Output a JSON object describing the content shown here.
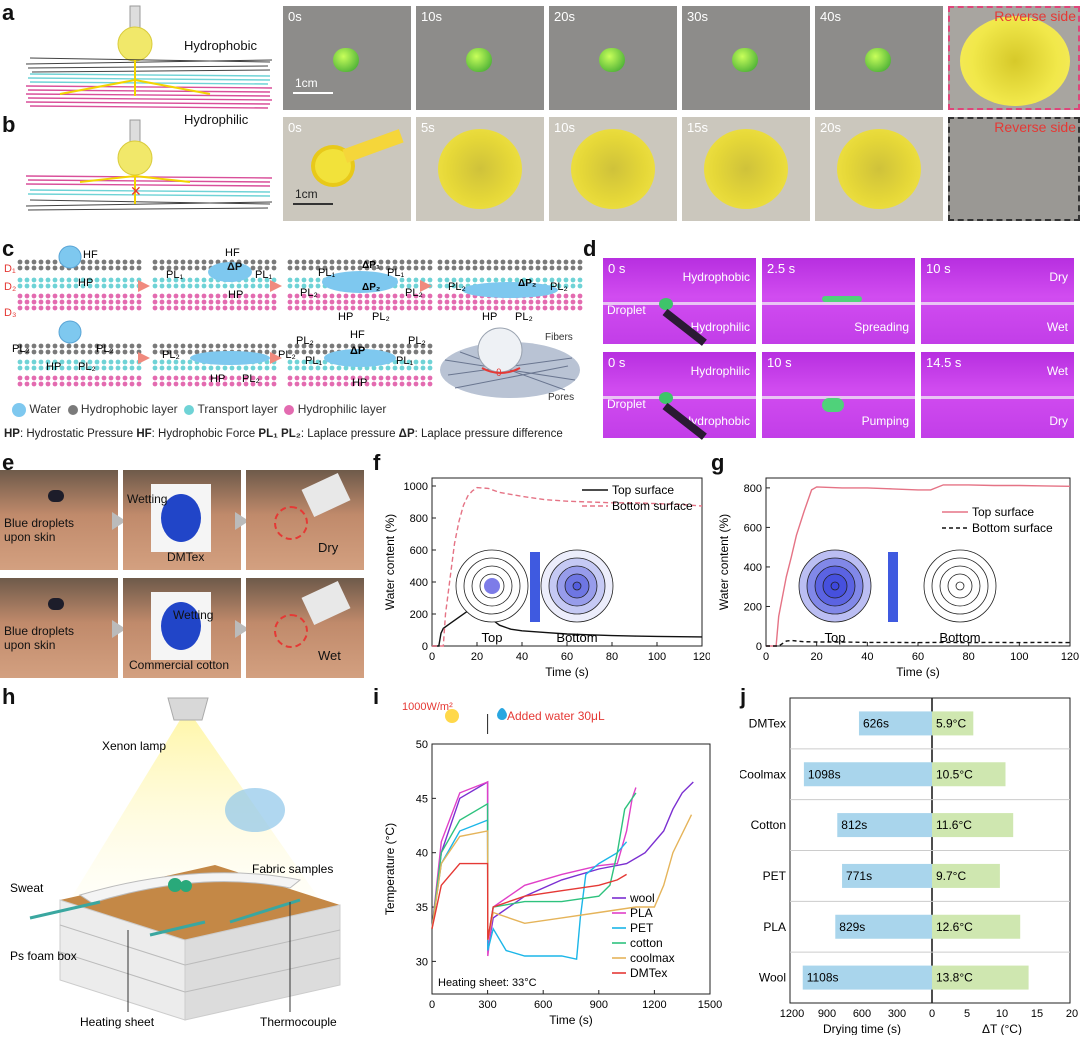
{
  "panels": {
    "a": "a",
    "b": "b",
    "c": "c",
    "d": "d",
    "e": "e",
    "f": "f",
    "g": "g",
    "h": "h",
    "i": "i",
    "j": "j"
  },
  "a": {
    "layer_label": "Hydrophobic",
    "times": [
      "0s",
      "10s",
      "20s",
      "30s",
      "40s"
    ],
    "reverse": "Reverse side",
    "scale": "1cm"
  },
  "b": {
    "layer_label": "Hydrophilic",
    "times": [
      "0s",
      "5s",
      "10s",
      "15s",
      "20s"
    ],
    "reverse": "Reverse side",
    "scale": "1cm"
  },
  "c": {
    "d1": "D₁",
    "d2": "D₂",
    "d3": "D₃",
    "hf": "HF",
    "hp": "HP",
    "pl1": "PL₁",
    "pl2": "PL₂",
    "dp": "ΔP",
    "dp1": "ΔP₁",
    "dp2": "ΔP₂",
    "fibers": "Fibers",
    "pores": "Pores",
    "theta": "θ",
    "legend": [
      "Water",
      "Hydrophobic layer",
      "Transport layer",
      "Hydrophilic layer"
    ],
    "caption_parts": [
      "HP",
      ": Hydrostatic Pressure  ",
      "HF",
      ": Hydrophobic Force  ",
      "PL₁  PL₂",
      ": Laplace pressure  ",
      "ΔP",
      ": Laplace pressure difference"
    ]
  },
  "d": {
    "row1": [
      {
        "t": "0 s",
        "top": "Hydrophobic",
        "bottom": "Hydrophilic",
        "extra": "Droplet"
      },
      {
        "t": "2.5 s",
        "extra": "Spreading"
      },
      {
        "t": "10 s",
        "top": "Dry",
        "bottom": "Wet"
      }
    ],
    "row2": [
      {
        "t": "0 s",
        "top": "Hydrophilic",
        "bottom": "Hydrophobic",
        "extra": "Droplet"
      },
      {
        "t": "10 s",
        "extra": "Pumping"
      },
      {
        "t": "14.5 s",
        "top": "Wet",
        "bottom": "Dry"
      }
    ]
  },
  "e": {
    "row1": [
      "Blue droplets\nupon skin",
      "Wetting",
      "DMTex",
      "Dry"
    ],
    "row2": [
      "Blue droplets\nupon skin",
      "Wetting",
      "Commercial cotton",
      "Wet"
    ]
  },
  "chart_data": [
    {
      "id": "f",
      "type": "line",
      "xlabel": "Time (s)",
      "ylabel": "Water content (%)",
      "xlim": [
        0,
        120
      ],
      "ylim": [
        0,
        1050
      ],
      "xticks": [
        0,
        20,
        40,
        60,
        80,
        100,
        120
      ],
      "yticks": [
        0,
        200,
        400,
        600,
        800,
        1000
      ],
      "legend": [
        "Top surface",
        "Bottom surface"
      ],
      "inset": [
        "Top",
        "Bottom"
      ],
      "series": [
        {
          "name": "Top surface",
          "color": "#111111",
          "dash": "",
          "x": [
            0,
            3,
            4,
            5,
            8,
            12,
            16,
            19,
            21,
            25,
            30,
            35,
            40,
            50,
            60,
            70,
            80,
            90,
            100,
            110,
            120
          ],
          "y": [
            0,
            0,
            80,
            110,
            140,
            180,
            220,
            240,
            225,
            185,
            130,
            105,
            95,
            85,
            75,
            70,
            65,
            62,
            60,
            58,
            57
          ]
        },
        {
          "name": "Bottom surface",
          "color": "#e57385",
          "dash": "5,3",
          "x": [
            0,
            5,
            6,
            8,
            10,
            12,
            14,
            16,
            18,
            20,
            25,
            30,
            40,
            50,
            60,
            70,
            80,
            90,
            100,
            110,
            120
          ],
          "y": [
            0,
            0,
            200,
            420,
            640,
            780,
            880,
            940,
            970,
            990,
            985,
            960,
            935,
            915,
            905,
            900,
            895,
            895,
            890,
            885,
            875
          ]
        }
      ]
    },
    {
      "id": "g",
      "type": "line",
      "xlabel": "Time (s)",
      "ylabel": "Water content (%)",
      "xlim": [
        0,
        120
      ],
      "ylim": [
        0,
        850
      ],
      "xticks": [
        0,
        20,
        40,
        60,
        80,
        100,
        120
      ],
      "yticks": [
        0,
        200,
        400,
        600,
        800
      ],
      "legend": [
        "Top surface",
        "Bottom surface"
      ],
      "inset": [
        "Top",
        "Bottom"
      ],
      "series": [
        {
          "name": "Top surface",
          "color": "#e57385",
          "dash": "",
          "x": [
            0,
            4,
            5,
            8,
            10,
            12,
            15,
            18,
            20,
            30,
            40,
            50,
            60,
            65,
            68,
            70,
            80,
            90,
            100,
            110,
            120
          ],
          "y": [
            0,
            0,
            150,
            350,
            450,
            560,
            680,
            790,
            805,
            800,
            800,
            795,
            790,
            790,
            805,
            815,
            815,
            812,
            812,
            810,
            808
          ]
        },
        {
          "name": "Bottom surface",
          "color": "#111111",
          "dash": "4,3",
          "x": [
            0,
            5,
            8,
            10,
            15,
            20,
            30,
            40,
            50,
            60,
            70,
            80,
            90,
            100,
            110,
            120
          ],
          "y": [
            0,
            0,
            25,
            28,
            22,
            20,
            20,
            18,
            18,
            17,
            18,
            17,
            18,
            17,
            18,
            17
          ]
        }
      ]
    },
    {
      "id": "i",
      "type": "line",
      "xlabel": "Time (s)",
      "ylabel": "Temperature (°C)",
      "xlim": [
        0,
        1500
      ],
      "ylim": [
        27,
        50
      ],
      "xticks": [
        0,
        300,
        600,
        900,
        1200,
        1500
      ],
      "yticks": [
        30,
        35,
        40,
        45,
        50
      ],
      "annotation_power": "1000W/m²",
      "annotation_water": "Added water 30μL",
      "annotation_heat": "Heating sheet: 33°C",
      "series": [
        {
          "name": "wool",
          "color": "#7b2fd1",
          "x": [
            0,
            50,
            150,
            300,
            301,
            330,
            500,
            700,
            900,
            1050,
            1150,
            1250,
            1300,
            1350,
            1410
          ],
          "y": [
            33,
            40,
            45,
            46.5,
            31,
            34,
            36,
            37.5,
            38.5,
            39,
            40,
            42,
            44,
            45.5,
            46.5
          ]
        },
        {
          "name": "PLA",
          "color": "#e040c8",
          "x": [
            0,
            50,
            150,
            300,
            301,
            330,
            500,
            700,
            900,
            1000,
            1050,
            1080,
            1100
          ],
          "y": [
            33,
            41,
            45.5,
            46.5,
            30.5,
            35,
            37,
            38,
            38.8,
            39,
            42,
            45,
            46
          ]
        },
        {
          "name": "PET",
          "color": "#1bb6e8",
          "x": [
            0,
            50,
            150,
            300,
            301,
            330,
            400,
            500,
            600,
            700,
            780,
            800,
            830,
            900,
            1000,
            1050
          ],
          "y": [
            33,
            39,
            42,
            43,
            31,
            33,
            31,
            30.5,
            30.5,
            30.5,
            30.2,
            34,
            38,
            39,
            40,
            41
          ]
        },
        {
          "name": "cotton",
          "color": "#2ec27e",
          "x": [
            0,
            50,
            150,
            300,
            301,
            330,
            500,
            700,
            900,
            960,
            1000,
            1040,
            1100
          ],
          "y": [
            33,
            40,
            43,
            44.5,
            32,
            35,
            35.5,
            35.5,
            36,
            37,
            40,
            44,
            45.5
          ]
        },
        {
          "name": "coolmax",
          "color": "#e5b45a",
          "x": [
            0,
            50,
            150,
            300,
            301,
            330,
            500,
            700,
            900,
            1100,
            1200,
            1250,
            1300,
            1400
          ],
          "y": [
            33,
            39,
            41.5,
            42,
            32,
            34.5,
            33.5,
            34,
            34.5,
            35,
            35,
            37,
            40,
            43.5
          ]
        },
        {
          "name": "DMTex",
          "color": "#e53935",
          "x": [
            0,
            50,
            150,
            300,
            301,
            330,
            500,
            700,
            900,
            1000,
            1050
          ],
          "y": [
            33,
            37,
            39,
            39,
            32,
            35,
            36,
            36.5,
            37,
            37.5,
            38
          ]
        }
      ]
    },
    {
      "id": "j",
      "type": "bar",
      "categories": [
        "DMTex",
        "Coolmax",
        "Cotton",
        "PET",
        "PLA",
        "Wool"
      ],
      "series": [
        {
          "name": "Drying time (s)",
          "values": [
            626,
            1098,
            812,
            771,
            829,
            1108
          ],
          "labels": [
            "626s",
            "1098s",
            "812s",
            "771s",
            "829s",
            "1108s"
          ],
          "color": "#a9d5ec"
        },
        {
          "name": "ΔT (°C)",
          "values": [
            5.9,
            10.5,
            11.6,
            9.7,
            12.6,
            13.8
          ],
          "labels": [
            "5.9°C",
            "10.5°C",
            "11.6°C",
            "9.7°C",
            "12.6°C",
            "13.8°C"
          ],
          "color": "#cfe7b0"
        }
      ],
      "xlabel_left": "Drying time (s)",
      "xlabel_right": "ΔT (°C)",
      "left_ticks": [
        1200,
        900,
        600,
        300,
        0
      ],
      "right_ticks": [
        0,
        5,
        10,
        15,
        20
      ]
    }
  ],
  "h": {
    "lamp": "Xenon lamp",
    "fabric": "Fabric samples",
    "sweat": "Sweat",
    "box": "Ps foam box",
    "heating": "Heating sheet",
    "thermo": "Thermocouple"
  }
}
